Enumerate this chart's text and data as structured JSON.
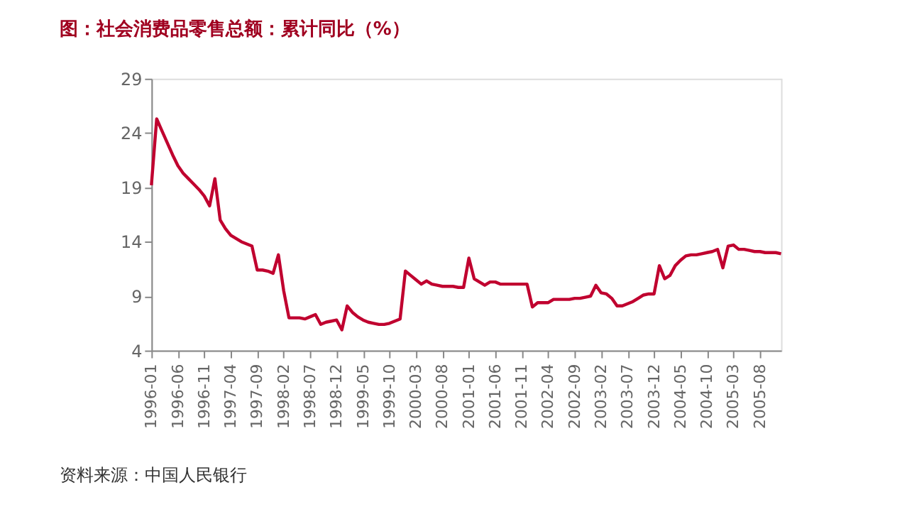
{
  "chart_data": {
    "type": "line",
    "title": "图：社会消费品零售总额：累计同比（%）",
    "annotations": [
      "资料来源：中国人民银行"
    ],
    "categories": [
      "1996-01",
      null,
      null,
      null,
      null,
      "1996-06",
      null,
      null,
      null,
      null,
      "1996-11",
      null,
      null,
      null,
      null,
      "1997-04",
      null,
      null,
      null,
      null,
      "1997-09",
      null,
      null,
      null,
      null,
      "1998-02",
      null,
      null,
      null,
      null,
      "1998-07",
      null,
      null,
      null,
      null,
      "1998-12",
      null,
      null,
      null,
      null,
      "1999-05",
      null,
      null,
      null,
      null,
      "1999-10",
      null,
      null,
      null,
      null,
      "2000-03",
      null,
      null,
      null,
      null,
      "2000-08",
      null,
      null,
      null,
      null,
      "2001-01",
      null,
      null,
      null,
      null,
      "2001-06",
      null,
      null,
      null,
      null,
      "2001-11",
      null,
      null,
      null,
      null,
      "2002-04",
      null,
      null,
      null,
      null,
      "2002-09",
      null,
      null,
      null,
      null,
      "2003-02",
      null,
      null,
      null,
      null,
      "2003-07",
      null,
      null,
      null,
      null,
      "2003-12",
      null,
      null,
      null,
      null,
      "2004-05",
      null,
      null,
      null,
      null,
      "2004-10",
      null,
      null,
      null,
      null,
      "2005-03",
      null,
      null,
      null,
      null,
      "2005-08",
      null,
      null,
      null,
      null
    ],
    "series": [
      {
        "color": "#c0002f",
        "values": [
          19.2,
          25.3,
          24.2,
          23.1,
          22.0,
          21.0,
          20.3,
          19.8,
          19.3,
          18.8,
          18.2,
          17.3,
          19.8,
          16.0,
          15.2,
          14.6,
          14.3,
          14.0,
          13.8,
          13.6,
          11.4,
          11.4,
          11.3,
          11.1,
          12.8,
          9.5,
          7.0,
          7.0,
          7.0,
          6.9,
          7.1,
          7.3,
          6.4,
          6.6,
          6.7,
          6.8,
          5.9,
          8.1,
          7.5,
          7.1,
          6.8,
          6.6,
          6.5,
          6.4,
          6.4,
          6.5,
          6.7,
          6.9,
          11.3,
          10.9,
          10.5,
          10.1,
          10.4,
          10.1,
          10.0,
          9.9,
          9.9,
          9.9,
          9.8,
          9.8,
          12.5,
          10.6,
          10.3,
          10.0,
          10.3,
          10.3,
          10.1,
          10.1,
          10.1,
          10.1,
          10.1,
          10.1,
          8.0,
          8.4,
          8.4,
          8.4,
          8.7,
          8.7,
          8.7,
          8.7,
          8.8,
          8.8,
          8.9,
          9.0,
          10.0,
          9.3,
          9.2,
          8.8,
          8.1,
          8.1,
          8.3,
          8.5,
          8.8,
          9.1,
          9.2,
          9.2,
          11.8,
          10.6,
          10.9,
          11.8,
          12.3,
          12.7,
          12.8,
          12.8,
          12.9,
          13.0,
          13.1,
          13.3,
          11.6,
          13.6,
          13.7,
          13.3,
          13.3,
          13.2,
          13.1,
          13.1,
          13.0,
          13.0,
          13.0,
          12.9
        ]
      }
    ],
    "ylim": [
      4,
      29
    ],
    "yticks": [
      4,
      9,
      14,
      19,
      24,
      29
    ],
    "grid": false,
    "marker": "none",
    "line_style": "solid"
  }
}
